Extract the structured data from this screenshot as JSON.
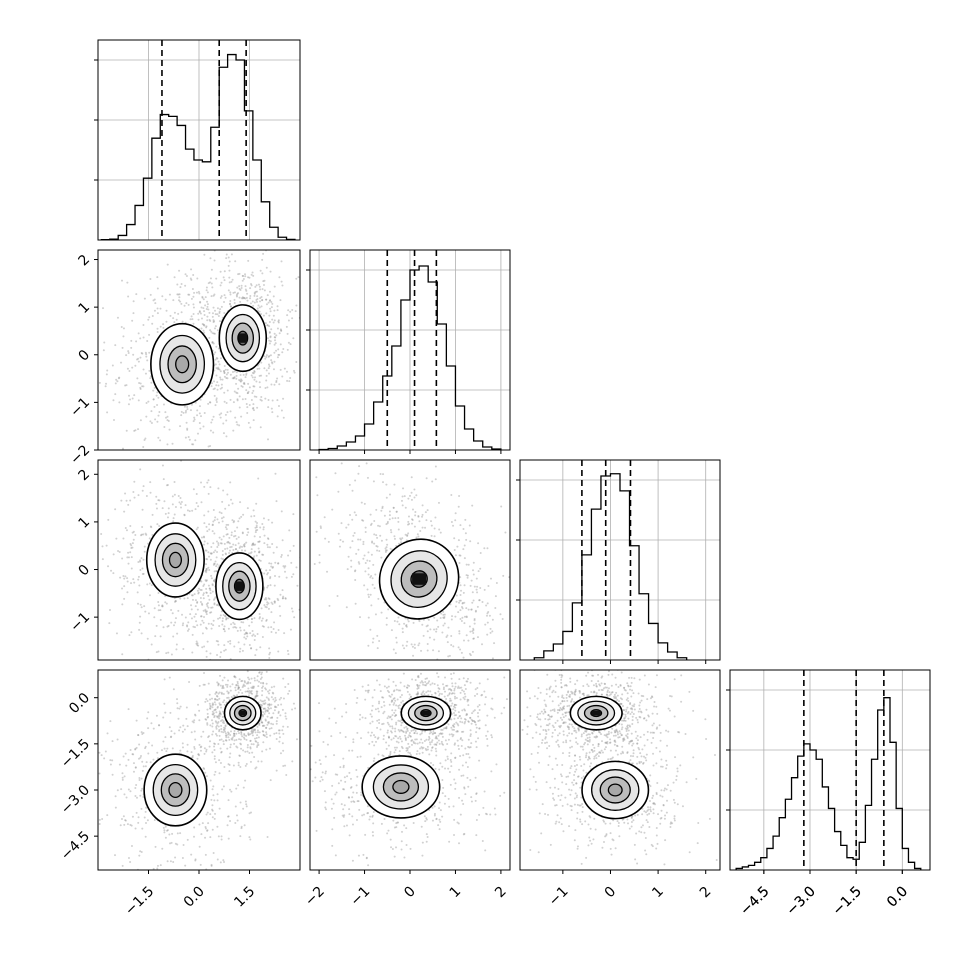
{
  "chart_data": [
    {
      "type": "histogram",
      "panel": "p0",
      "bins": [
        -2.9,
        -2.65,
        -2.4,
        -2.15,
        -1.9,
        -1.65,
        -1.4,
        -1.15,
        -0.9,
        -0.65,
        -0.4,
        -0.15,
        0.1,
        0.35,
        0.6,
        0.85,
        1.1,
        1.35,
        1.6,
        1.85,
        2.1,
        2.35,
        2.6,
        2.85
      ],
      "counts": [
        0.2,
        0.5,
        2.5,
        8.5,
        19,
        34,
        56,
        69,
        68,
        63,
        50,
        44,
        43,
        62,
        95,
        102,
        99,
        71,
        44,
        21,
        7,
        1.5,
        0.3
      ],
      "quantile_lines": [
        -1.1,
        0.6,
        1.4
      ],
      "xlim": [
        -3.0,
        3.0
      ],
      "ylim": [
        0,
        110
      ],
      "grid": true
    },
    {
      "type": "histogram",
      "panel": "p1",
      "bins": [
        -2.0,
        -1.8,
        -1.6,
        -1.4,
        -1.2,
        -1.0,
        -0.8,
        -0.6,
        -0.4,
        -0.2,
        0.0,
        0.2,
        0.4,
        0.6,
        0.8,
        1.0,
        1.2,
        1.4,
        1.6,
        1.8,
        2.0
      ],
      "counts": [
        0.5,
        1.5,
        4,
        8,
        14,
        26,
        48,
        74,
        104,
        150,
        180,
        184,
        168,
        126,
        84,
        44,
        21,
        9,
        3,
        1
      ],
      "quantile_lines": [
        -0.5,
        0.1,
        0.58
      ],
      "xlim": [
        -2.2,
        2.2
      ],
      "ylim": [
        0,
        200
      ],
      "grid": true,
      "xticks": [
        "−2",
        "−1",
        "0",
        "1",
        "2"
      ]
    },
    {
      "type": "histogram",
      "panel": "p2",
      "bins": [
        -1.6,
        -1.4,
        -1.2,
        -1.0,
        -0.8,
        -0.6,
        -0.4,
        -0.2,
        0.0,
        0.2,
        0.4,
        0.6,
        0.8,
        1.0,
        1.2,
        1.4,
        1.6
      ],
      "counts": [
        2,
        8,
        14,
        25,
        50,
        92,
        132,
        161,
        163,
        148,
        100,
        58,
        32,
        15,
        7,
        2
      ],
      "quantile_lines": [
        -0.6,
        -0.1,
        0.42
      ],
      "xlim": [
        -1.9,
        2.3
      ],
      "ylim": [
        0,
        175
      ],
      "grid": true,
      "xticks": [
        "−1",
        "0",
        "1",
        "2"
      ]
    },
    {
      "type": "histogram",
      "panel": "p3",
      "bins": [
        -5.4,
        -5.2,
        -5.0,
        -4.8,
        -4.6,
        -4.4,
        -4.2,
        -4.0,
        -3.8,
        -3.6,
        -3.4,
        -3.2,
        -3.0,
        -2.8,
        -2.6,
        -2.4,
        -2.2,
        -2.0,
        -1.8,
        -1.6,
        -1.4,
        -1.2,
        -1.0,
        -0.8,
        -0.6,
        -0.4,
        -0.2,
        0.0,
        0.2,
        0.4,
        0.6
      ],
      "counts": [
        1,
        2,
        3,
        5,
        8,
        14,
        22,
        34,
        46,
        60,
        74,
        82,
        78,
        72,
        54,
        40,
        25,
        16,
        8,
        7,
        18,
        42,
        72,
        104,
        112,
        83,
        40,
        14,
        5,
        1
      ],
      "quantile_lines": [
        -3.2,
        -1.5,
        -0.6
      ],
      "xlim": [
        -5.6,
        0.9
      ],
      "ylim": [
        0,
        130
      ],
      "grid": true,
      "xticks": [
        "−4.5",
        "−3.0",
        "−1.5",
        "0.0"
      ]
    },
    {
      "type": "scatter_density",
      "panel": "p0-p1",
      "xlim": [
        -3.0,
        3.0
      ],
      "ylim": [
        -2.0,
        2.2
      ],
      "clusters": [
        {
          "center": [
            -0.5,
            -0.2
          ],
          "spread": [
            0.6,
            0.55
          ],
          "peak": 0.55
        },
        {
          "center": [
            1.3,
            0.35
          ],
          "spread": [
            0.45,
            0.45
          ],
          "peak": 1.0
        }
      ],
      "contour_levels": 4,
      "yticks": [
        "−2",
        "−1",
        "0",
        "1",
        "2"
      ]
    },
    {
      "type": "scatter_density",
      "panel": "p0-p2",
      "xlim": [
        -3.0,
        3.0
      ],
      "ylim": [
        -1.9,
        2.3
      ],
      "clusters": [
        {
          "center": [
            -0.7,
            0.2
          ],
          "spread": [
            0.55,
            0.5
          ],
          "peak": 0.55
        },
        {
          "center": [
            1.2,
            -0.35
          ],
          "spread": [
            0.45,
            0.45
          ],
          "peak": 1.0
        }
      ],
      "contour_levels": 4,
      "yticks": [
        "−1",
        "0",
        "1",
        "2"
      ]
    },
    {
      "type": "scatter_density",
      "panel": "p1-p2",
      "xlim": [
        -2.2,
        2.2
      ],
      "ylim": [
        -1.9,
        2.3
      ],
      "clusters": [
        {
          "center": [
            0.2,
            -0.2
          ],
          "spread": [
            0.55,
            0.55
          ],
          "peak": 1.0,
          "tilt": -0.5
        }
      ],
      "contour_levels": 4
    },
    {
      "type": "scatter_density",
      "panel": "p0-p3",
      "xlim": [
        -3.0,
        3.0
      ],
      "ylim": [
        -5.6,
        0.9
      ],
      "clusters": [
        {
          "center": [
            -0.7,
            -3.0
          ],
          "spread": [
            0.6,
            0.75
          ],
          "peak": 0.55
        },
        {
          "center": [
            1.3,
            -0.5
          ],
          "spread": [
            0.35,
            0.35
          ],
          "peak": 1.0
        }
      ],
      "contour_levels": 4,
      "xticks": [
        "−1.5",
        "0.0",
        "1.5"
      ],
      "yticks": [
        "−4.5",
        "−3.0",
        "−1.5",
        "0.0"
      ]
    },
    {
      "type": "scatter_density",
      "panel": "p1-p3",
      "xlim": [
        -2.2,
        2.2
      ],
      "ylim": [
        -5.6,
        0.9
      ],
      "clusters": [
        {
          "center": [
            -0.2,
            -2.9
          ],
          "spread": [
            0.55,
            0.65
          ],
          "peak": 0.55
        },
        {
          "center": [
            0.35,
            -0.5
          ],
          "spread": [
            0.35,
            0.35
          ],
          "peak": 1.0
        }
      ],
      "contour_levels": 4
    },
    {
      "type": "scatter_density",
      "panel": "p2-p3",
      "xlim": [
        -1.9,
        2.3
      ],
      "ylim": [
        -5.6,
        0.9
      ],
      "clusters": [
        {
          "center": [
            0.1,
            -3.0
          ],
          "spread": [
            0.45,
            0.6
          ],
          "peak": 0.55
        },
        {
          "center": [
            -0.3,
            -0.5
          ],
          "spread": [
            0.35,
            0.35
          ],
          "peak": 1.0
        }
      ],
      "contour_levels": 4
    }
  ]
}
